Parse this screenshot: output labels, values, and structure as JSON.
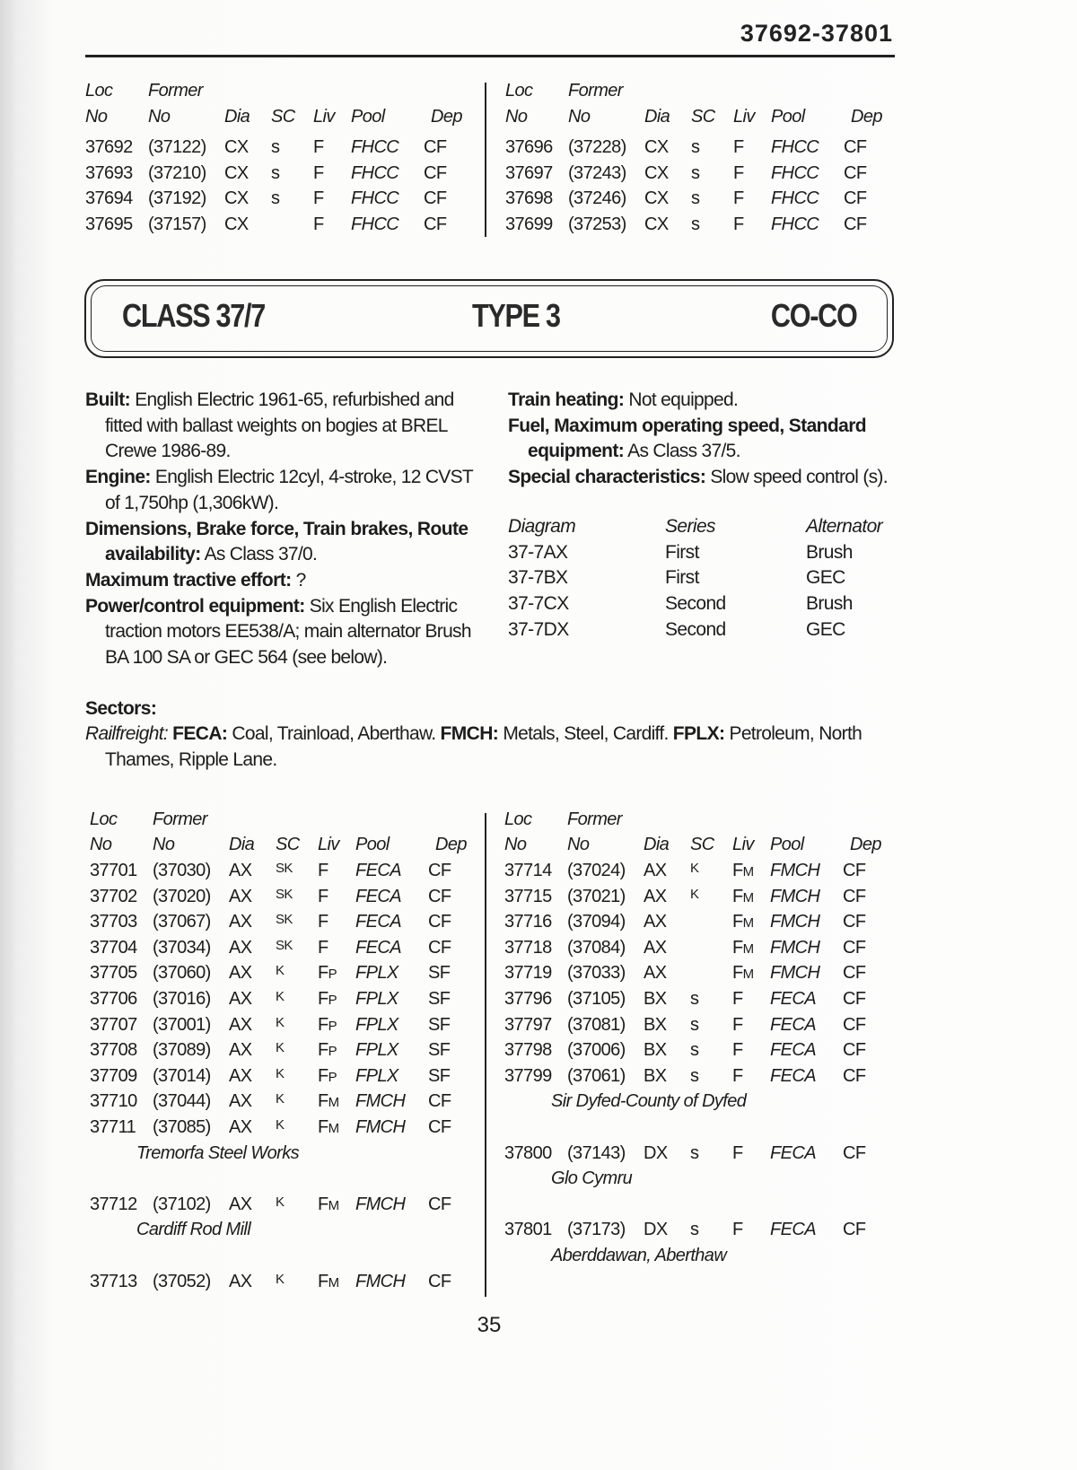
{
  "header": {
    "page_range": "37692-37801"
  },
  "columns": {
    "loc": "Loc",
    "loc_no": "No",
    "former": "Former",
    "former_no": "No",
    "dia": "Dia",
    "sc": "SC",
    "liv": "Liv",
    "pool": "Pool",
    "dep": "Dep"
  },
  "top_left": [
    [
      "37692",
      "(37122)",
      "CX",
      "s",
      "F",
      "FHCC",
      "CF"
    ],
    [
      "37693",
      "(37210)",
      "CX",
      "s",
      "F",
      "FHCC",
      "CF"
    ],
    [
      "37694",
      "(37192)",
      "CX",
      "s",
      "F",
      "FHCC",
      "CF"
    ],
    [
      "37695",
      "(37157)",
      "CX",
      "",
      "F",
      "FHCC",
      "CF"
    ]
  ],
  "top_right": [
    [
      "37696",
      "(37228)",
      "CX",
      "s",
      "F",
      "FHCC",
      "CF"
    ],
    [
      "37697",
      "(37243)",
      "CX",
      "s",
      "F",
      "FHCC",
      "CF"
    ],
    [
      "37698",
      "(37246)",
      "CX",
      "s",
      "F",
      "FHCC",
      "CF"
    ],
    [
      "37699",
      "(37253)",
      "CX",
      "s",
      "F",
      "FHCC",
      "CF"
    ]
  ],
  "banner": {
    "class": "CLASS 37/7",
    "type": "TYPE 3",
    "wheel": "CO-CO"
  },
  "specs_left": [
    {
      "label": "Built:",
      "text": " English Electric 1961-65, refurbished and fitted with ballast weights on bogies at BREL Crewe 1986-89."
    },
    {
      "label": "Engine:",
      "text": " English Electric 12cyl, 4-stroke, 12 CVST of 1,750hp (1,306kW)."
    },
    {
      "label": "Dimensions, Brake force, Train brakes, Route availability:",
      "text": " As Class 37/0."
    },
    {
      "label": "Maximum tractive effort:",
      "text": " ?"
    },
    {
      "label": "Power/control equipment:",
      "text": " Six English Electric traction motors EE538/A; main alternator Brush BA 100 SA or GEC 564 (see below)."
    }
  ],
  "specs_right": [
    {
      "label": "Train heating:",
      "text": " Not equipped."
    },
    {
      "label": "Fuel, Maximum operating speed, Standard equipment:",
      "text": " As Class 37/5."
    },
    {
      "label": "Special characteristics:",
      "text": " Slow speed control (s)."
    }
  ],
  "diagram_table": {
    "headers": [
      "Diagram",
      "Series",
      "Alternator"
    ],
    "rows": [
      [
        "37-7AX",
        "First",
        "Brush"
      ],
      [
        "37-7BX",
        "First",
        "GEC"
      ],
      [
        "37-7CX",
        "Second",
        "Brush"
      ],
      [
        "37-7DX",
        "Second",
        "GEC"
      ]
    ]
  },
  "sectors": {
    "title": "Sectors:",
    "group": "Railfreight:",
    "items": [
      {
        "code": "FECA:",
        "text": " Coal, Trainload, Aberthaw. "
      },
      {
        "code": "FMCH:",
        "text": " Metals, Steel, Cardiff. "
      },
      {
        "code": "FPLX:",
        "text": " Petroleum, North Thames, Ripple Lane."
      }
    ]
  },
  "bottom_left": [
    {
      "cells": [
        "37701",
        "(37030)",
        "AX",
        "SK",
        "F",
        "FECA",
        "CF"
      ]
    },
    {
      "cells": [
        "37702",
        "(37020)",
        "AX",
        "SK",
        "F",
        "FECA",
        "CF"
      ]
    },
    {
      "cells": [
        "37703",
        "(37067)",
        "AX",
        "SK",
        "F",
        "FECA",
        "CF"
      ]
    },
    {
      "cells": [
        "37704",
        "(37034)",
        "AX",
        "SK",
        "F",
        "FECA",
        "CF"
      ]
    },
    {
      "cells": [
        "37705",
        "(37060)",
        "AX",
        "K",
        "FP",
        "FPLX",
        "SF"
      ]
    },
    {
      "cells": [
        "37706",
        "(37016)",
        "AX",
        "K",
        "FP",
        "FPLX",
        "SF"
      ]
    },
    {
      "cells": [
        "37707",
        "(37001)",
        "AX",
        "K",
        "FP",
        "FPLX",
        "SF"
      ]
    },
    {
      "cells": [
        "37708",
        "(37089)",
        "AX",
        "K",
        "FP",
        "FPLX",
        "SF"
      ]
    },
    {
      "cells": [
        "37709",
        "(37014)",
        "AX",
        "K",
        "FP",
        "FPLX",
        "SF"
      ]
    },
    {
      "cells": [
        "37710",
        "(37044)",
        "AX",
        "K",
        "FM",
        "FMCH",
        "CF"
      ]
    },
    {
      "cells": [
        "37711",
        "(37085)",
        "AX",
        "K",
        "FM",
        "FMCH",
        "CF"
      ],
      "name": "Tremorfa Steel Works"
    },
    {
      "cells": [
        "37712",
        "(37102)",
        "AX",
        "K",
        "FM",
        "FMCH",
        "CF"
      ],
      "name": "Cardiff Rod Mill"
    },
    {
      "cells": [
        "37713",
        "(37052)",
        "AX",
        "K",
        "FM",
        "FMCH",
        "CF"
      ]
    }
  ],
  "bottom_right": [
    {
      "cells": [
        "37714",
        "(37024)",
        "AX",
        "K",
        "FM",
        "FMCH",
        "CF"
      ]
    },
    {
      "cells": [
        "37715",
        "(37021)",
        "AX",
        "K",
        "FM",
        "FMCH",
        "CF"
      ]
    },
    {
      "cells": [
        "37716",
        "(37094)",
        "AX",
        "",
        "FM",
        "FMCH",
        "CF"
      ]
    },
    {
      "cells": [
        "37718",
        "(37084)",
        "AX",
        "",
        "FM",
        "FMCH",
        "CF"
      ]
    },
    {
      "cells": [
        "37719",
        "(37033)",
        "AX",
        "",
        "FM",
        "FMCH",
        "CF"
      ]
    },
    {
      "cells": [
        "37796",
        "(37105)",
        "BX",
        "s",
        "F",
        "FECA",
        "CF"
      ]
    },
    {
      "cells": [
        "37797",
        "(37081)",
        "BX",
        "s",
        "F",
        "FECA",
        "CF"
      ]
    },
    {
      "cells": [
        "37798",
        "(37006)",
        "BX",
        "s",
        "F",
        "FECA",
        "CF"
      ]
    },
    {
      "cells": [
        "37799",
        "(37061)",
        "BX",
        "s",
        "F",
        "FECA",
        "CF"
      ],
      "name": "Sir Dyfed-County of Dyfed"
    },
    {
      "cells": [
        "37800",
        "(37143)",
        "DX",
        "s",
        "F",
        "FECA",
        "CF"
      ],
      "name": "Glo Cymru"
    },
    {
      "cells": [
        "37801",
        "(37173)",
        "DX",
        "s",
        "F",
        "FECA",
        "CF"
      ],
      "name": "Aberddawan, Aberthaw"
    }
  ],
  "footer": {
    "page_number": "35"
  }
}
